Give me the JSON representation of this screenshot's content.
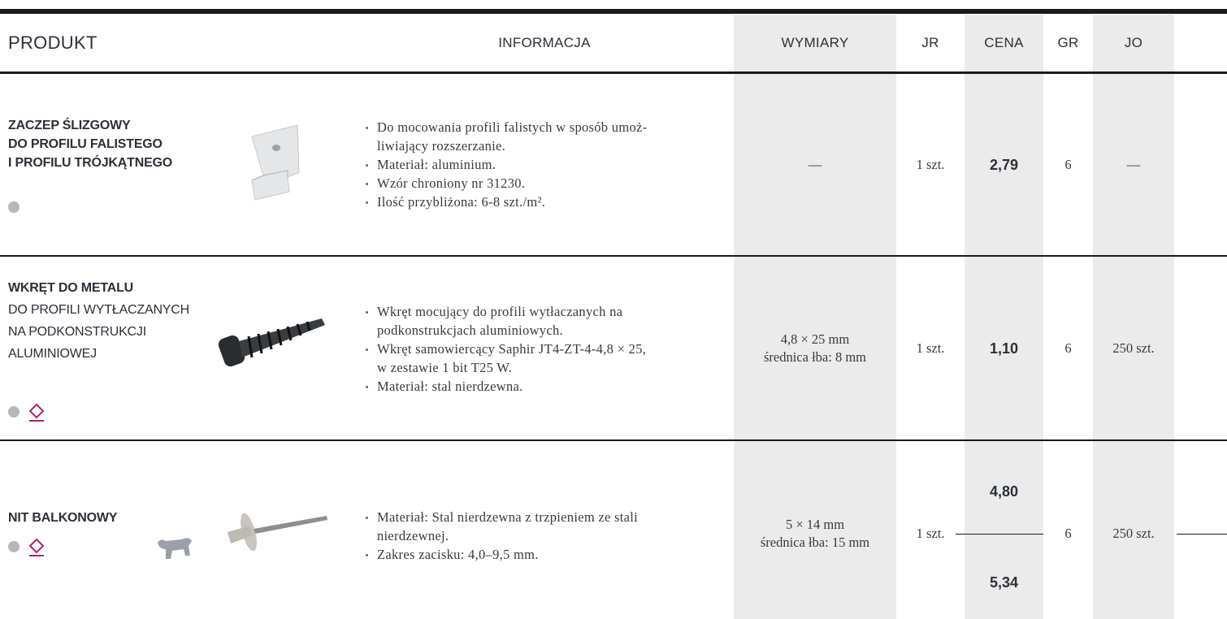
{
  "header": {
    "columns": [
      "PRODUKT",
      "INFORMACJA",
      "WYMIARY",
      "JR",
      "CENA",
      "GR",
      "JO"
    ]
  },
  "rows": [
    {
      "name_bold": [
        "ZACZEP ŚLIZGOWY",
        "DO PROFILU FALISTEGO",
        "I PROFILU TRÓJKĄTNEGO"
      ],
      "info": [
        [
          "Do mocowania profili falistych w sposób umoż-",
          "liwiający rozszerzanie."
        ],
        [
          "Materiał: aluminium."
        ],
        [
          "Wzór chroniony nr 31230."
        ],
        [
          "Ilość przybliżona: 6-8 szt./m²."
        ]
      ],
      "dimensions": [
        "—"
      ],
      "unit": "1 szt.",
      "prices": [
        "2,79"
      ],
      "gr": "6",
      "jo": "—"
    },
    {
      "name_bold": [
        "WKRĘT DO METALU"
      ],
      "name": [
        "DO PROFILI WYTŁACZANYCH",
        "NA PODKONSTRUKCJI",
        "ALUMINIOWEJ"
      ],
      "info": [
        [
          "Wkręt mocujący do profili wytłaczanych na",
          "podkonstrukcjach aluminiowych."
        ],
        [
          "Wkręt samowiercący Saphir JT4-ZT-4-4,8 × 25,",
          "w zestawie 1 bit T25 W."
        ],
        [
          "Materiał: stal nierdzewna."
        ]
      ],
      "dimensions": [
        "4,8 × 25 mm",
        "średnica łba: 8 mm"
      ],
      "unit": "1 szt.",
      "prices": [
        "1,10"
      ],
      "gr": "6",
      "jo": "250 szt."
    },
    {
      "name_bold": [
        "NIT BALKONOWY"
      ],
      "info": [
        [
          "Materiał: Stal nierdzewna z trzpieniem ze stali",
          "nierdzewnej."
        ],
        [
          "Zakres zacisku: 4,0–9,5 mm."
        ]
      ],
      "dimensions": [
        "5 × 14 mm",
        "średnica łba: 15 mm"
      ],
      "unit": "1 szt.",
      "prices": [
        "4,80",
        "5,34"
      ],
      "gr": "6",
      "jo": "250 szt."
    }
  ]
}
